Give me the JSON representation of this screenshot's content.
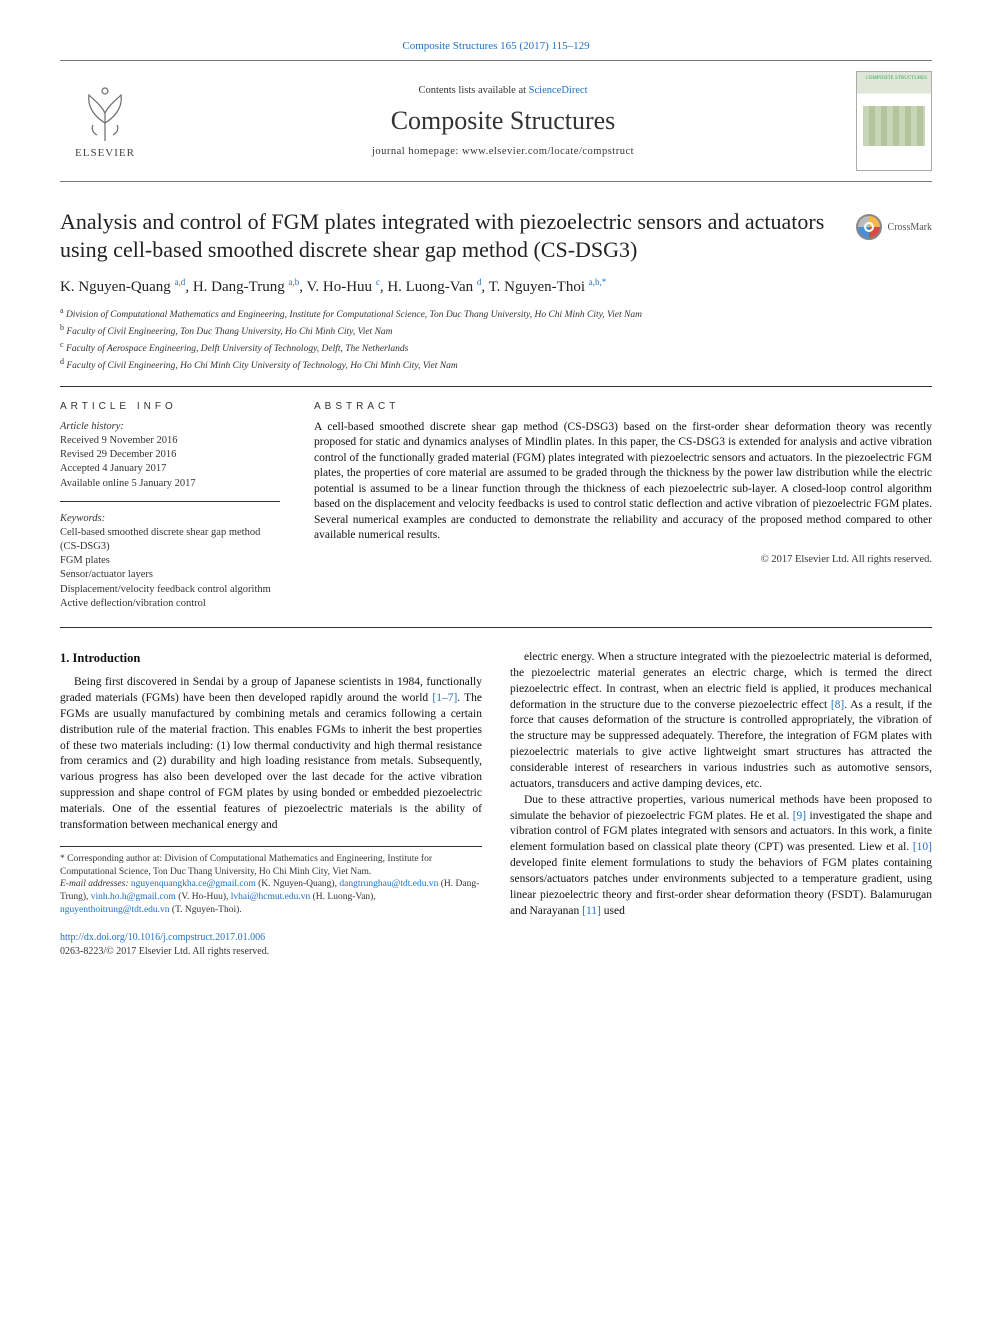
{
  "topCitation": "Composite Structures 165 (2017) 115–129",
  "header": {
    "elsevierWord": "ELSEVIER",
    "contentsLine_pre": "Contents lists available at ",
    "contentsLine_link": "ScienceDirect",
    "journalName": "Composite Structures",
    "homepage_pre": "journal homepage: ",
    "homepage_url": "www.elsevier.com/locate/compstruct",
    "coverTopWord": "COMPOSITE STRUCTURES"
  },
  "crossmark": {
    "label": "CrossMark"
  },
  "title": "Analysis and control of FGM plates integrated with piezoelectric sensors and actuators using cell-based smoothed discrete shear gap method (CS-DSG3)",
  "authors_html_parts": [
    {
      "text": "K. Nguyen-Quang ",
      "sup": "a,d"
    },
    {
      "text": ", H. Dang-Trung ",
      "sup": "a,b"
    },
    {
      "text": ", V. Ho-Huu ",
      "sup": "c"
    },
    {
      "text": ", H. Luong-Van ",
      "sup": "d"
    },
    {
      "text": ", T. Nguyen-Thoi ",
      "sup": "a,b,"
    }
  ],
  "authors_star": "*",
  "affiliations": [
    {
      "sup": "a",
      "text": "Division of Computational Mathematics and Engineering, Institute for Computational Science, Ton Duc Thang University, Ho Chi Minh City, Viet Nam"
    },
    {
      "sup": "b",
      "text": "Faculty of Civil Engineering, Ton Duc Thang University, Ho Chi Minh City, Viet Nam"
    },
    {
      "sup": "c",
      "text": "Faculty of Aerospace Engineering, Delft University of Technology, Delft, The Netherlands"
    },
    {
      "sup": "d",
      "text": "Faculty of Civil Engineering, Ho Chi Minh City University of Technology, Ho Chi Minh City, Viet Nam"
    }
  ],
  "info": {
    "head": "ARTICLE INFO",
    "histLabel": "Article history:",
    "hist": [
      "Received 9 November 2016",
      "Revised 29 December 2016",
      "Accepted 4 January 2017",
      "Available online 5 January 2017"
    ],
    "kwLabel": "Keywords:",
    "keywords": [
      "Cell-based smoothed discrete shear gap method (CS-DSG3)",
      "FGM plates",
      "Sensor/actuator layers",
      "Displacement/velocity feedback control algorithm",
      "Active deflection/vibration control"
    ]
  },
  "abstract": {
    "head": "ABSTRACT",
    "text": "A cell-based smoothed discrete shear gap method (CS-DSG3) based on the first-order shear deformation theory was recently proposed for static and dynamics analyses of Mindlin plates. In this paper, the CS-DSG3 is extended for analysis and active vibration control of the functionally graded material (FGM) plates integrated with piezoelectric sensors and actuators. In the piezoelectric FGM plates, the properties of core material are assumed to be graded through the thickness by the power law distribution while the electric potential is assumed to be a linear function through the thickness of each piezoelectric sub-layer. A closed-loop control algorithm based on the displacement and velocity feedbacks is used to control static deflection and active vibration of piezoelectric FGM plates. Several numerical examples are conducted to demonstrate the reliability and accuracy of the proposed method compared to other available numerical results.",
    "copyright": "© 2017 Elsevier Ltd. All rights reserved."
  },
  "section1": {
    "head": "1. Introduction",
    "p1_a": "Being first discovered in Sendai by a group of Japanese scientists in 1984, functionally graded materials (FGMs) have been then developed rapidly around the world ",
    "p1_cite1": "[1–7]",
    "p1_b": ". The FGMs are usually manufactured by combining metals and ceramics following a certain distribution rule of the material fraction. This enables FGMs to inherit the best properties of these two materials including: (1) low thermal conductivity and high thermal resistance from ceramics and (2) durability and high loading resistance from metals. Subsequently, various progress has also been developed over the last decade for the active vibration suppression and shape control of FGM plates by using bonded or embedded piezoelectric materials. One of the essential features of piezoelectric materials is the ability of transformation between mechanical energy and",
    "p2_a": "electric energy. When a structure integrated with the piezoelectric material is deformed, the piezoelectric material generates an electric charge, which is termed the direct piezoelectric effect. In contrast, when an electric field is applied, it produces mechanical deformation in the structure due to the converse piezoelectric effect ",
    "p2_cite8": "[8]",
    "p2_b": ". As a result, if the force that causes deformation of the structure is controlled appropriately, the vibration of the structure may be suppressed adequately. Therefore, the integration of FGM plates with piezoelectric materials to give active lightweight smart structures has attracted the considerable interest of researchers in various industries such as automotive sensors, actuators, transducers and active damping devices, etc.",
    "p3_a": "Due to these attractive properties, various numerical methods have been proposed to simulate the behavior of piezoelectric FGM plates. He et al. ",
    "p3_cite9": "[9]",
    "p3_b": " investigated the shape and vibration control of FGM plates integrated with sensors and actuators. In this work, a finite element formulation based on classical plate theory (CPT) was presented. Liew et al. ",
    "p3_cite10": "[10]",
    "p3_c": " developed finite element formulations to study the behaviors of FGM plates containing sensors/actuators patches under environments subjected to a temperature gradient, using linear piezoelectric theory and first-order shear deformation theory (FSDT). Balamurugan and Narayanan ",
    "p3_cite11": "[11]",
    "p3_d": " used"
  },
  "footnotes": {
    "corr_star": "*",
    "corr": " Corresponding author at: Division of Computational Mathematics and Engineering, Institute for Computational Science, Ton Duc Thang University, Ho Chi Minh City, Viet Nam.",
    "emailsLabel": "E-mail addresses: ",
    "emails": [
      {
        "addr": "nguyenquangkha.ce@gmail.com",
        "who": " (K. Nguyen-Quang), "
      },
      {
        "addr": "dangtrunghau@tdt.edu.vn",
        "who": " (H. Dang-Trung), "
      },
      {
        "addr": "vinh.ho.h@gmail.com",
        "who": " (V. Ho-Huu), "
      },
      {
        "addr": "lvhai@hcmut.edu.vn",
        "who": " (H. Luong-Van), "
      },
      {
        "addr": "nguyenthoitrung@tdt.edu.vn",
        "who": " (T. Nguyen-Thoi)."
      }
    ]
  },
  "doi": {
    "url": "http://dx.doi.org/10.1016/j.compstruct.2017.01.006",
    "issn": "0263-8223/© 2017 Elsevier Ltd. All rights reserved."
  },
  "colors": {
    "link": "#2070c0",
    "rule": "#333333",
    "bodyText": "#111111"
  }
}
